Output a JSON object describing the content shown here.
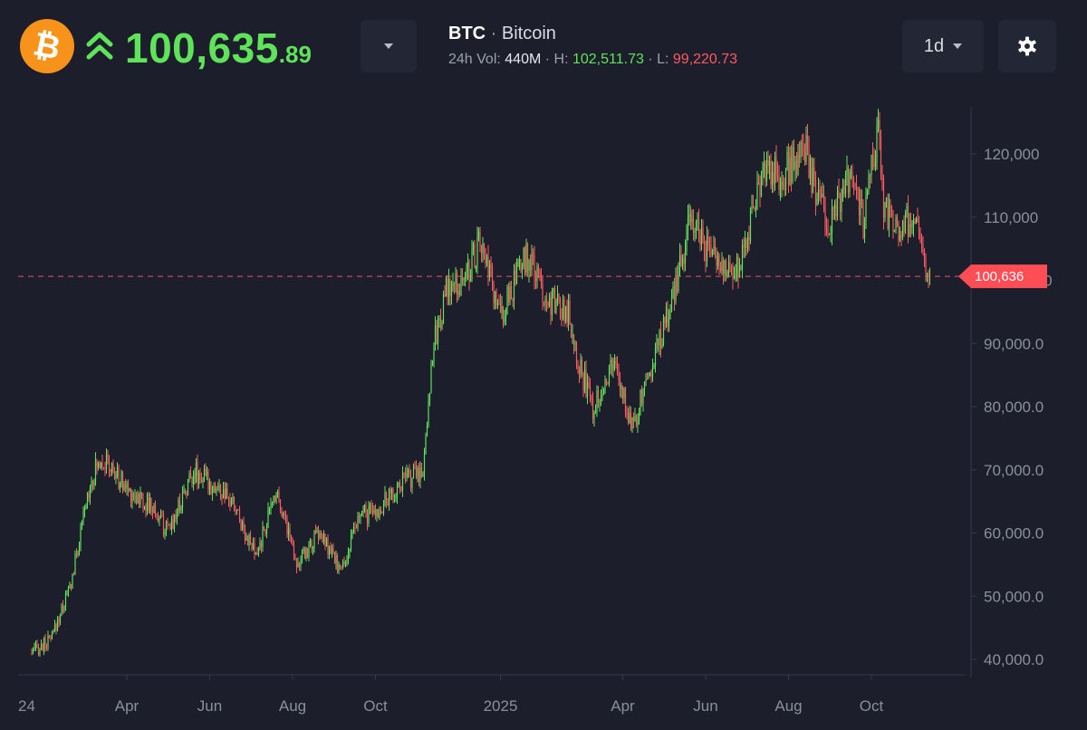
{
  "header": {
    "coin_symbol_glyph": "₿",
    "price_main": "100,635",
    "price_decimals": ".89",
    "pair_symbol": "BTC",
    "pair_separator": " · ",
    "pair_name": "Bitcoin",
    "vol_label": "24h Vol: ",
    "vol_value": "440M",
    "high_label": " · H: ",
    "high_value": "102,511.73",
    "low_label": " · L: ",
    "low_value": "99,220.73",
    "interval": "1d"
  },
  "icons": {
    "logo": "bitcoin-logo-icon",
    "trend": "double-chevron-up-icon",
    "dropdown": "chevron-down-icon",
    "settings": "gear-icon"
  },
  "colors": {
    "background": "#1c1f2b",
    "up": "#5fe35a",
    "down": "#ff5a5f",
    "brand": "#f7931a"
  },
  "chart_data": {
    "type": "candlestick",
    "current_price_label": "100,636",
    "current_price": 100636,
    "y_ticks": [
      "40,000.0",
      "50,000.0",
      "60,000.0",
      "70,000.0",
      "80,000.0",
      "90,000.0",
      "100,000.0",
      "110,000",
      "120,000"
    ],
    "y_tick_values": [
      40000,
      50000,
      60000,
      70000,
      80000,
      90000,
      100000,
      110000,
      120000
    ],
    "x_labels": [
      "24",
      "Apr",
      "Jun",
      "Aug",
      "Oct",
      "2025",
      "Apr",
      "Jun",
      "Aug",
      "Oct"
    ],
    "ylim": [
      38000,
      127500
    ],
    "series": [
      {
        "dates": [
          "2024-01-22",
          "2024-02-05",
          "2024-02-20",
          "2024-03-05",
          "2024-03-13",
          "2024-04-01",
          "2024-04-20",
          "2024-05-01",
          "2024-05-20",
          "2024-06-01",
          "2024-06-20",
          "2024-07-05",
          "2024-07-20",
          "2024-08-05",
          "2024-08-20",
          "2024-09-06",
          "2024-09-20",
          "2024-10-01",
          "2024-10-20",
          "2024-11-05",
          "2024-11-12",
          "2024-11-22",
          "2024-12-05",
          "2024-12-17",
          "2025-01-01",
          "2025-01-20",
          "2025-02-05",
          "2025-02-20",
          "2025-03-01",
          "2025-03-10",
          "2025-03-25",
          "2025-04-08",
          "2025-04-20",
          "2025-05-05",
          "2025-05-22",
          "2025-06-05",
          "2025-06-22",
          "2025-07-01",
          "2025-07-14",
          "2025-07-28",
          "2025-08-14",
          "2025-08-20",
          "2025-09-01",
          "2025-09-15",
          "2025-09-25",
          "2025-10-06",
          "2025-10-10",
          "2025-10-20",
          "2025-11-01",
          "2025-11-08",
          "2025-11-13"
        ],
        "close": [
          41000,
          43000,
          52000,
          68000,
          72000,
          67000,
          64000,
          60000,
          70000,
          68000,
          64000,
          56000,
          67000,
          55000,
          60000,
          54000,
          63000,
          63000,
          68000,
          70000,
          89000,
          98000,
          100000,
          106000,
          94000,
          104000,
          97000,
          95000,
          86000,
          80000,
          87000,
          77000,
          85000,
          95000,
          110000,
          104000,
          101000,
          107000,
          118000,
          117000,
          120000,
          114000,
          109000,
          116000,
          109000,
          124000,
          112000,
          108000,
          110000,
          104000,
          100636
        ]
      }
    ]
  }
}
